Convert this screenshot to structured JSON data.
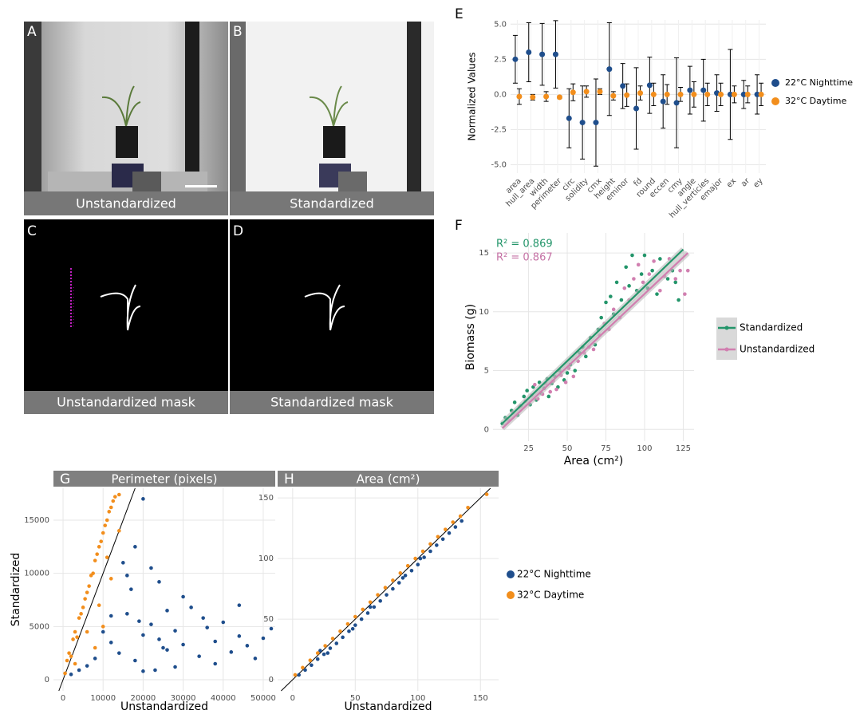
{
  "panels": [
    {
      "letter": "A",
      "caption": "Unstandardized"
    },
    {
      "letter": "B",
      "caption": "Standardized"
    },
    {
      "letter": "C",
      "caption": "Unstandardized mask"
    },
    {
      "letter": "D",
      "caption": "Standardized mask"
    }
  ],
  "chart_data": [
    {
      "type": "errorbar",
      "panel": "E",
      "ylabel": "Normalized Values",
      "categories": [
        "area",
        "hull_area",
        "width",
        "perimeter",
        "circ",
        "solidity",
        "cmx",
        "height",
        "eminor",
        "fd",
        "round",
        "eccen",
        "cmy",
        "angle",
        "hull_verticies",
        "emajor",
        "ex",
        "ar",
        "ey"
      ],
      "series": [
        {
          "name": "22°C Nighttime",
          "color": "#1f4e8c",
          "values": [
            2.5,
            3.0,
            2.85,
            2.85,
            -1.7,
            -2.0,
            -2.0,
            1.8,
            0.6,
            -1.0,
            0.65,
            -0.5,
            -0.6,
            0.3,
            0.3,
            0.1,
            0.0,
            0.0,
            0.0
          ],
          "errors": [
            1.7,
            2.1,
            2.2,
            2.4,
            2.1,
            2.6,
            3.1,
            3.3,
            1.6,
            2.9,
            2.0,
            1.9,
            3.2,
            1.7,
            2.2,
            1.3,
            3.2,
            1.0,
            1.4
          ]
        },
        {
          "name": "32°C Daytime",
          "color": "#f28e1c",
          "values": [
            -0.15,
            -0.2,
            -0.15,
            -0.2,
            0.15,
            0.2,
            0.2,
            -0.1,
            -0.05,
            0.1,
            0.0,
            0.0,
            0.0,
            0.0,
            0.0,
            0.0,
            0.0,
            0.0,
            0.0
          ],
          "errors": [
            0.55,
            0.2,
            0.35,
            0.1,
            0.6,
            0.4,
            0.2,
            0.3,
            0.8,
            0.5,
            0.8,
            0.7,
            0.5,
            0.9,
            0.8,
            0.8,
            0.6,
            0.6,
            0.8
          ]
        }
      ],
      "ylim": [
        -5.6,
        5.3
      ],
      "yticks": [
        {
          "value": -5,
          "label": "-5.0"
        },
        -2.5,
        {
          "value": 0,
          "label": "0.0"
        },
        2.5,
        {
          "value": 5,
          "label": "5.0"
        }
      ],
      "grid": true,
      "legend": "right"
    },
    {
      "type": "scatter",
      "panel": "F",
      "xlabel": "Area (cm²)",
      "ylabel": "Biomass (g)",
      "series": [
        {
          "name": "Standardized",
          "color": "#23956a",
          "x": [
            8,
            10,
            14,
            16,
            18,
            20,
            22,
            24,
            26,
            28,
            30,
            32,
            33,
            35,
            37,
            38,
            40,
            42,
            44,
            45,
            48,
            50,
            52,
            55,
            58,
            60,
            62,
            65,
            68,
            70,
            72,
            75,
            78,
            80,
            82,
            85,
            88,
            90,
            92,
            95,
            98,
            100,
            102,
            105,
            108,
            110,
            115,
            118,
            120,
            122
          ],
          "y": [
            0.5,
            1.0,
            1.6,
            2.3,
            1.2,
            2.0,
            2.8,
            3.3,
            2.1,
            3.6,
            2.5,
            4.0,
            3.1,
            3.5,
            4.3,
            2.8,
            3.9,
            4.5,
            3.6,
            5.0,
            4.2,
            4.8,
            5.5,
            5.0,
            6.5,
            7.0,
            6.2,
            7.8,
            7.2,
            8.5,
            9.5,
            10.8,
            11.3,
            9.8,
            12.5,
            11.0,
            13.8,
            12.2,
            14.8,
            11.8,
            13.2,
            14.8,
            12.0,
            13.5,
            11.5,
            14.5,
            12.8,
            13.5,
            12.5,
            11.0
          ],
          "fit": {
            "x": [
              8,
              125
            ],
            "y": [
              0.5,
              15.3
            ]
          }
        },
        {
          "name": "Unstandardized",
          "color": "#d17fb0",
          "x": [
            12,
            15,
            19,
            23,
            27,
            29,
            31,
            34,
            36,
            39,
            41,
            43,
            46,
            49,
            51,
            54,
            57,
            61,
            64,
            67,
            71,
            74,
            77,
            80,
            84,
            87,
            90,
            93,
            96,
            99,
            103,
            106,
            110,
            113,
            116,
            120,
            123,
            126,
            128
          ],
          "y": [
            0.8,
            1.4,
            1.9,
            2.4,
            2.9,
            3.8,
            2.6,
            3.0,
            3.9,
            3.2,
            4.1,
            3.4,
            4.6,
            4.0,
            5.2,
            4.5,
            5.8,
            6.5,
            7.0,
            6.8,
            8.0,
            9.0,
            8.5,
            10.2,
            9.5,
            12.0,
            11.0,
            12.8,
            14.0,
            12.5,
            13.2,
            14.3,
            11.8,
            13.0,
            14.5,
            12.8,
            13.5,
            11.5,
            13.5
          ],
          "fit": {
            "x": [
              8,
              128
            ],
            "y": [
              0.1,
              15.0
            ]
          }
        }
      ],
      "annotations": [
        {
          "text": "R² = 0.869",
          "color": "#23956a"
        },
        {
          "text": "R² = 0.867",
          "color": "#c572a5"
        }
      ],
      "xlim": [
        2,
        132
      ],
      "ylim": [
        -1,
        16.7
      ],
      "xticks": [
        25,
        50,
        75,
        100,
        125
      ],
      "yticks": [
        0,
        5,
        10,
        15
      ],
      "grid": true,
      "legend": "right"
    },
    {
      "type": "scatter",
      "panel": "G",
      "title": "Perimeter (pixels)",
      "xlabel": "Unstandardized",
      "ylabel": "Standardized",
      "series": [
        {
          "color": "#1f4e8c",
          "x": [
            15000,
            16000,
            17000,
            18000,
            20000,
            22000,
            24000,
            25000,
            10000,
            12000,
            14000,
            18000,
            20000,
            22000,
            24000,
            26000,
            28000,
            30000,
            32000,
            34000,
            36000,
            38000,
            40000,
            42000,
            44000,
            46000,
            48000,
            50000,
            52000,
            30000,
            28000,
            20000,
            16000,
            8000,
            6000,
            4000,
            2000,
            12000,
            35000,
            26000,
            19000,
            23000,
            38000,
            44000
          ],
          "y": [
            11000,
            9800,
            8500,
            12500,
            17000,
            10500,
            9200,
            3000,
            4500,
            3500,
            2500,
            1800,
            4200,
            5200,
            3800,
            2800,
            4600,
            3300,
            6800,
            2200,
            4900,
            3600,
            5400,
            2600,
            4100,
            3200,
            2000,
            3900,
            4800,
            7800,
            1200,
            800,
            6200,
            2000,
            1300,
            900,
            500,
            6000,
            5800,
            6500,
            5500,
            900,
            1500,
            7000
          ]
        },
        {
          "color": "#f28e1c",
          "x": [
            500,
            1000,
            1500,
            2000,
            2500,
            3000,
            3500,
            4000,
            4500,
            5000,
            5500,
            6000,
            6500,
            7000,
            7500,
            8000,
            8500,
            9000,
            9500,
            10000,
            10500,
            11000,
            11500,
            12000,
            12500,
            13000,
            14000,
            8000,
            10000,
            12000,
            14000,
            6000,
            3000,
            9000,
            11000
          ],
          "y": [
            600,
            1800,
            2500,
            2200,
            3800,
            4500,
            4000,
            5800,
            6200,
            6800,
            7600,
            8200,
            8800,
            9800,
            10000,
            11200,
            11800,
            12500,
            13000,
            13800,
            14500,
            15000,
            15800,
            16200,
            16800,
            17200,
            17400,
            3000,
            5000,
            9500,
            14000,
            4500,
            1500,
            7000,
            11500
          ]
        }
      ],
      "xlim": [
        -2400,
        53000
      ],
      "ylim": [
        -1050,
        18000
      ],
      "xticks": [
        0,
        10000,
        20000,
        30000,
        40000,
        50000
      ],
      "yticks": [
        0,
        5000,
        10000,
        15000
      ],
      "grid": true,
      "identity_line": true
    },
    {
      "type": "scatter",
      "panel": "H",
      "title": "Area (cm²)",
      "xlabel": "Unstandardized",
      "series": [
        {
          "name": "22°C Nighttime",
          "color": "#1f4e8c",
          "x": [
            5,
            10,
            15,
            20,
            25,
            30,
            35,
            40,
            45,
            50,
            55,
            60,
            65,
            70,
            75,
            80,
            85,
            90,
            95,
            100,
            105,
            110,
            115,
            120,
            125,
            130,
            135,
            22,
            28,
            48,
            62,
            88,
            102
          ],
          "y": [
            4,
            8,
            12,
            17,
            21,
            26,
            30,
            35,
            40,
            45,
            50,
            55,
            60,
            65,
            70,
            75,
            80,
            86,
            90,
            95,
            101,
            106,
            111,
            116,
            121,
            126,
            131,
            24,
            22,
            42,
            60,
            84,
            100
          ]
        },
        {
          "name": "32°C Daytime",
          "color": "#f28e1c",
          "x": [
            2,
            8,
            14,
            20,
            26,
            32,
            38,
            44,
            50,
            56,
            62,
            68,
            74,
            80,
            86,
            92,
            98,
            104,
            110,
            116,
            122,
            128,
            134,
            140,
            155
          ],
          "y": [
            4,
            10,
            16,
            22,
            28,
            34,
            40,
            46,
            52,
            58,
            64,
            70,
            76,
            82,
            88,
            94,
            100,
            106,
            112,
            118,
            124,
            130,
            135,
            142,
            153
          ]
        }
      ],
      "xlim": [
        -12,
        164.5
      ],
      "ylim": [
        -9.2,
        158
      ],
      "xticks": [
        0,
        50,
        100,
        150
      ],
      "yticks": [
        0,
        50,
        100,
        150
      ],
      "grid": true,
      "identity_line": true,
      "legend": "right"
    }
  ]
}
